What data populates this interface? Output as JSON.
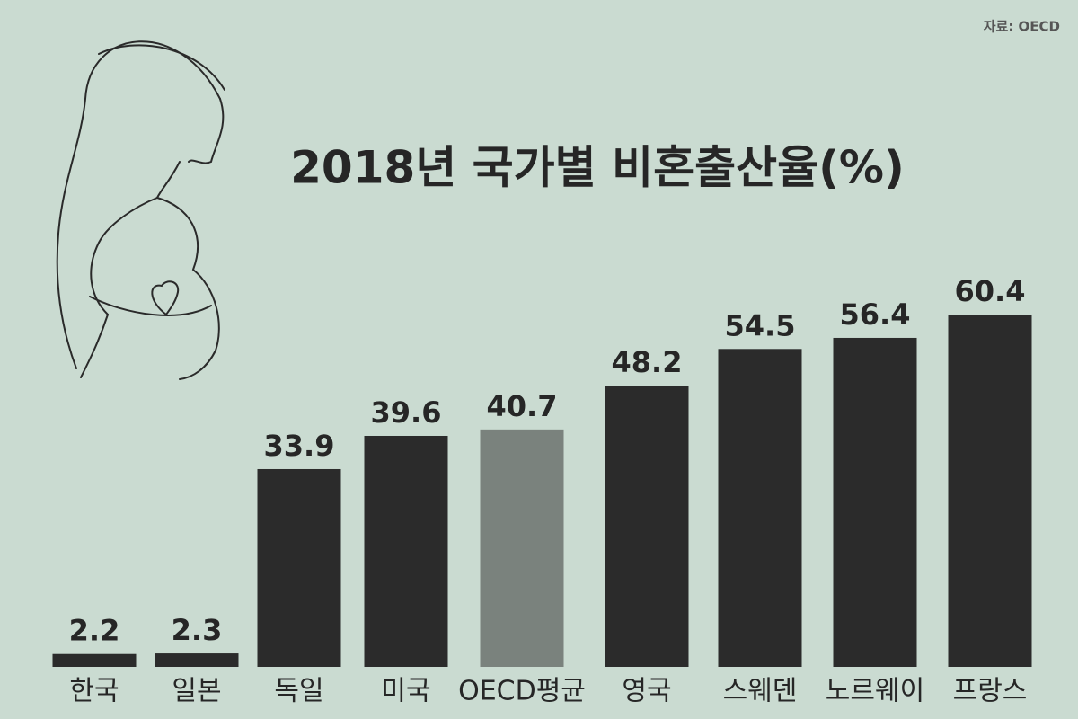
{
  "source": "자료: OECD",
  "chart_data": {
    "type": "bar",
    "title": "2018년 국가별 비혼출산율(%)",
    "categories": [
      "한국",
      "일본",
      "독일",
      "미국",
      "OECD평균",
      "영국",
      "스웨덴",
      "노르웨이",
      "프랑스"
    ],
    "values": [
      2.2,
      2.3,
      33.9,
      39.6,
      40.7,
      48.2,
      54.5,
      56.4,
      60.4
    ],
    "colors": [
      "#2b2b2b",
      "#2b2b2b",
      "#2b2b2b",
      "#2b2b2b",
      "#7a827d",
      "#2b2b2b",
      "#2b2b2b",
      "#2b2b2b",
      "#2b2b2b"
    ]
  }
}
